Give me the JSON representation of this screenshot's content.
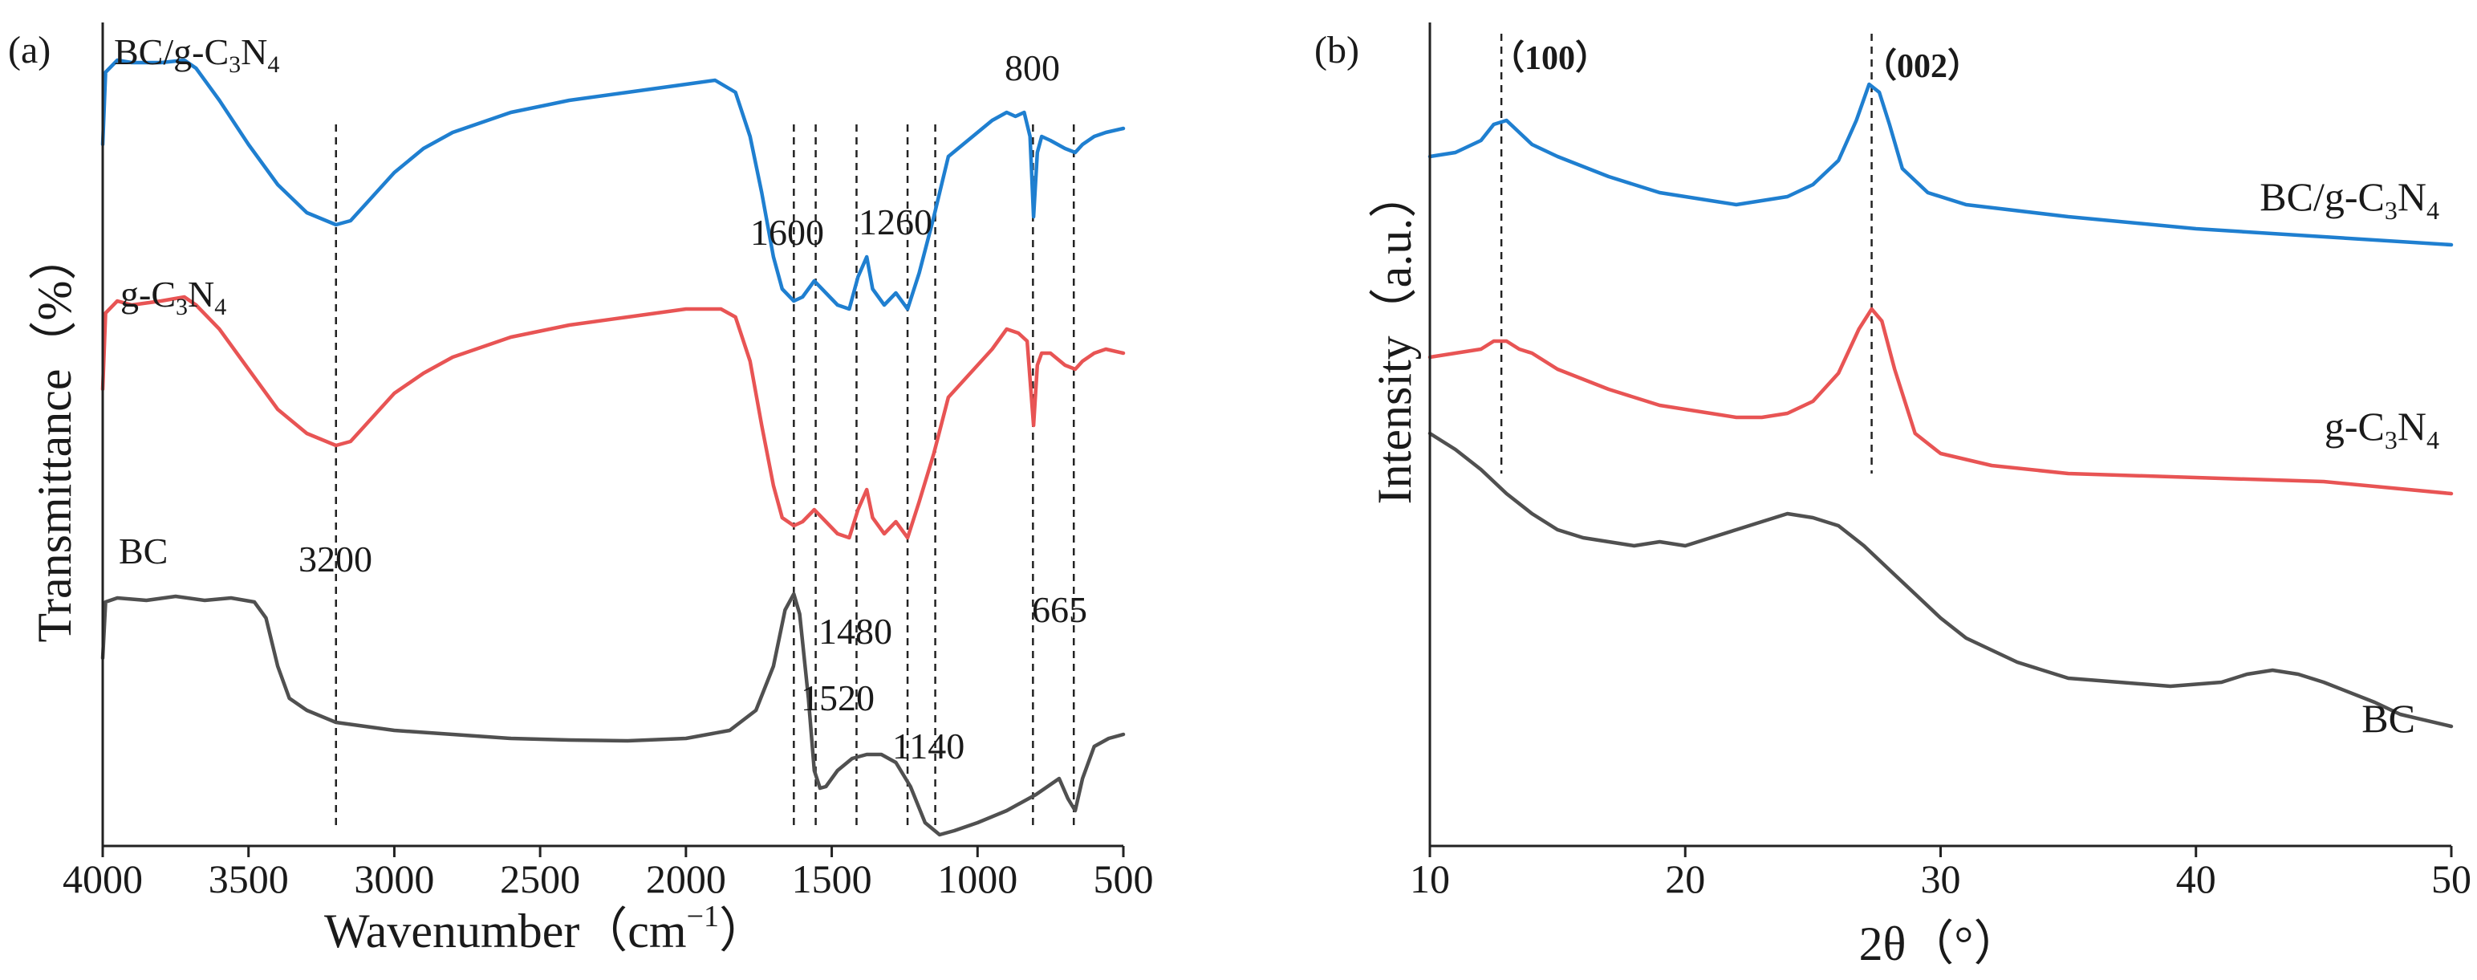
{
  "colors": {
    "bc": "#505050",
    "gc3n4": "#e85454",
    "bc_gc3n4": "#1f7fd0",
    "axis": "#222222"
  },
  "chart_data": [
    {
      "panel": "(a)",
      "type": "line",
      "title": "",
      "xlabel": "Wavenumber（cm",
      "xlabel_sup": "−1",
      "xlabel_close": "）",
      "ylabel": "Transmittance（%）",
      "xlim": [
        4000,
        500
      ],
      "ylim": [
        0,
        1
      ],
      "x_ticks": [
        4000,
        3500,
        3000,
        2500,
        2000,
        1500,
        1000,
        500
      ],
      "x_tick_labels": [
        "4000",
        "3500",
        "3000",
        "2500",
        "2000",
        "1500",
        "1000",
        "500"
      ],
      "grid": false,
      "series": [
        {
          "name": "BC/g-C3N4",
          "label_main": "BC/g-C",
          "label_sub1": "3",
          "label_mid": "N",
          "label_sub2": "4",
          "color_key": "bc_gc3n4",
          "points": [
            [
              4000,
              0.86
            ],
            [
              3990,
              0.95
            ],
            [
              3950,
              0.965
            ],
            [
              3900,
              0.962
            ],
            [
              3800,
              0.962
            ],
            [
              3720,
              0.965
            ],
            [
              3680,
              0.955
            ],
            [
              3600,
              0.915
            ],
            [
              3500,
              0.86
            ],
            [
              3400,
              0.81
            ],
            [
              3300,
              0.775
            ],
            [
              3200,
              0.76
            ],
            [
              3150,
              0.765
            ],
            [
              3100,
              0.785
            ],
            [
              3000,
              0.825
            ],
            [
              2900,
              0.855
            ],
            [
              2800,
              0.875
            ],
            [
              2600,
              0.9
            ],
            [
              2400,
              0.915
            ],
            [
              2200,
              0.925
            ],
            [
              2000,
              0.935
            ],
            [
              1900,
              0.94
            ],
            [
              1830,
              0.925
            ],
            [
              1780,
              0.87
            ],
            [
              1740,
              0.8
            ],
            [
              1700,
              0.72
            ],
            [
              1670,
              0.68
            ],
            [
              1630,
              0.665
            ],
            [
              1600,
              0.67
            ],
            [
              1560,
              0.69
            ],
            [
              1520,
              0.675
            ],
            [
              1480,
              0.66
            ],
            [
              1440,
              0.655
            ],
            [
              1410,
              0.695
            ],
            [
              1380,
              0.72
            ],
            [
              1360,
              0.68
            ],
            [
              1320,
              0.66
            ],
            [
              1280,
              0.675
            ],
            [
              1240,
              0.655
            ],
            [
              1200,
              0.7
            ],
            [
              1150,
              0.77
            ],
            [
              1100,
              0.845
            ],
            [
              1050,
              0.86
            ],
            [
              1000,
              0.875
            ],
            [
              950,
              0.89
            ],
            [
              900,
              0.9
            ],
            [
              870,
              0.895
            ],
            [
              840,
              0.9
            ],
            [
              820,
              0.87
            ],
            [
              808,
              0.77
            ],
            [
              795,
              0.85
            ],
            [
              780,
              0.87
            ],
            [
              750,
              0.865
            ],
            [
              700,
              0.855
            ],
            [
              665,
              0.85
            ],
            [
              640,
              0.86
            ],
            [
              600,
              0.87
            ],
            [
              560,
              0.875
            ],
            [
              500,
              0.88
            ]
          ]
        },
        {
          "name": "g-C3N4",
          "label_main": "g-C",
          "label_sub1": "3",
          "label_mid": "N",
          "label_sub2": "4",
          "color_key": "gc3n4",
          "points": [
            [
              4000,
              0.555
            ],
            [
              3990,
              0.65
            ],
            [
              3950,
              0.665
            ],
            [
              3900,
              0.66
            ],
            [
              3800,
              0.665
            ],
            [
              3720,
              0.67
            ],
            [
              3680,
              0.66
            ],
            [
              3600,
              0.63
            ],
            [
              3500,
              0.58
            ],
            [
              3400,
              0.53
            ],
            [
              3300,
              0.5
            ],
            [
              3200,
              0.485
            ],
            [
              3150,
              0.49
            ],
            [
              3100,
              0.51
            ],
            [
              3000,
              0.55
            ],
            [
              2900,
              0.575
            ],
            [
              2800,
              0.595
            ],
            [
              2600,
              0.62
            ],
            [
              2400,
              0.635
            ],
            [
              2200,
              0.645
            ],
            [
              2000,
              0.655
            ],
            [
              1880,
              0.655
            ],
            [
              1830,
              0.645
            ],
            [
              1780,
              0.59
            ],
            [
              1740,
              0.51
            ],
            [
              1700,
              0.435
            ],
            [
              1670,
              0.395
            ],
            [
              1630,
              0.385
            ],
            [
              1600,
              0.39
            ],
            [
              1560,
              0.405
            ],
            [
              1520,
              0.39
            ],
            [
              1480,
              0.375
            ],
            [
              1440,
              0.37
            ],
            [
              1410,
              0.405
            ],
            [
              1380,
              0.43
            ],
            [
              1360,
              0.395
            ],
            [
              1320,
              0.375
            ],
            [
              1280,
              0.39
            ],
            [
              1240,
              0.37
            ],
            [
              1200,
              0.415
            ],
            [
              1150,
              0.475
            ],
            [
              1100,
              0.545
            ],
            [
              1050,
              0.565
            ],
            [
              1000,
              0.585
            ],
            [
              950,
              0.605
            ],
            [
              900,
              0.63
            ],
            [
              860,
              0.625
            ],
            [
              830,
              0.615
            ],
            [
              808,
              0.51
            ],
            [
              795,
              0.585
            ],
            [
              780,
              0.6
            ],
            [
              750,
              0.6
            ],
            [
              700,
              0.585
            ],
            [
              665,
              0.58
            ],
            [
              640,
              0.59
            ],
            [
              600,
              0.6
            ],
            [
              560,
              0.605
            ],
            [
              500,
              0.6
            ]
          ]
        },
        {
          "name": "BC",
          "label_main": "BC",
          "color_key": "bc",
          "points": [
            [
              4000,
              0.22
            ],
            [
              3990,
              0.29
            ],
            [
              3950,
              0.295
            ],
            [
              3850,
              0.292
            ],
            [
              3750,
              0.297
            ],
            [
              3650,
              0.292
            ],
            [
              3560,
              0.295
            ],
            [
              3480,
              0.29
            ],
            [
              3440,
              0.27
            ],
            [
              3400,
              0.21
            ],
            [
              3360,
              0.17
            ],
            [
              3300,
              0.155
            ],
            [
              3200,
              0.14
            ],
            [
              3000,
              0.13
            ],
            [
              2800,
              0.125
            ],
            [
              2600,
              0.12
            ],
            [
              2400,
              0.118
            ],
            [
              2200,
              0.117
            ],
            [
              2000,
              0.12
            ],
            [
              1850,
              0.13
            ],
            [
              1760,
              0.155
            ],
            [
              1700,
              0.21
            ],
            [
              1660,
              0.28
            ],
            [
              1630,
              0.3
            ],
            [
              1610,
              0.275
            ],
            [
              1580,
              0.17
            ],
            [
              1560,
              0.08
            ],
            [
              1540,
              0.058
            ],
            [
              1520,
              0.06
            ],
            [
              1480,
              0.08
            ],
            [
              1430,
              0.095
            ],
            [
              1380,
              0.1
            ],
            [
              1330,
              0.1
            ],
            [
              1280,
              0.09
            ],
            [
              1230,
              0.06
            ],
            [
              1180,
              0.015
            ],
            [
              1130,
              0.0
            ],
            [
              1080,
              0.005
            ],
            [
              1000,
              0.015
            ],
            [
              900,
              0.03
            ],
            [
              800,
              0.05
            ],
            [
              720,
              0.07
            ],
            [
              690,
              0.045
            ],
            [
              665,
              0.03
            ],
            [
              640,
              0.07
            ],
            [
              600,
              0.11
            ],
            [
              550,
              0.12
            ],
            [
              500,
              0.125
            ]
          ]
        }
      ],
      "peak_labels": [
        "3200",
        "1600",
        "1480",
        "1520",
        "1260",
        "1140",
        "800",
        "665"
      ],
      "reference_lines": [
        3200,
        1630,
        1415,
        1240,
        1555,
        1145,
        810,
        670
      ]
    },
    {
      "panel": "(b)",
      "type": "line",
      "title": "",
      "xlabel": "2θ（°）",
      "ylabel": "Intensity（a.u.）",
      "xlim": [
        10,
        50
      ],
      "ylim": [
        0,
        1
      ],
      "x_ticks": [
        10,
        20,
        30,
        40,
        50
      ],
      "x_tick_labels": [
        "10",
        "20",
        "30",
        "40",
        "50"
      ],
      "grid": false,
      "series": [
        {
          "name": "BC/g-C3N4",
          "label_main": "BC/g-C",
          "label_sub1": "3",
          "label_mid": "N",
          "label_sub2": "4",
          "color_key": "bc_gc3n4",
          "points": [
            [
              10,
              0.845
            ],
            [
              11,
              0.85
            ],
            [
              12,
              0.865
            ],
            [
              12.5,
              0.885
            ],
            [
              13,
              0.89
            ],
            [
              13.5,
              0.875
            ],
            [
              14,
              0.86
            ],
            [
              15,
              0.845
            ],
            [
              17,
              0.82
            ],
            [
              19,
              0.8
            ],
            [
              21,
              0.79
            ],
            [
              22,
              0.785
            ],
            [
              23,
              0.79
            ],
            [
              24,
              0.795
            ],
            [
              25,
              0.81
            ],
            [
              26,
              0.84
            ],
            [
              26.7,
              0.89
            ],
            [
              27.2,
              0.935
            ],
            [
              27.6,
              0.925
            ],
            [
              28,
              0.885
            ],
            [
              28.5,
              0.83
            ],
            [
              29.5,
              0.8
            ],
            [
              31,
              0.785
            ],
            [
              35,
              0.77
            ],
            [
              40,
              0.755
            ],
            [
              45,
              0.745
            ],
            [
              50,
              0.735
            ]
          ]
        },
        {
          "name": "g-C3N4",
          "label_main": "g-C",
          "label_sub1": "3",
          "label_mid": "N",
          "label_sub2": "4",
          "color_key": "gc3n4",
          "points": [
            [
              10,
              0.595
            ],
            [
              11,
              0.6
            ],
            [
              12,
              0.605
            ],
            [
              12.5,
              0.615
            ],
            [
              13,
              0.615
            ],
            [
              13.5,
              0.605
            ],
            [
              14,
              0.6
            ],
            [
              15,
              0.58
            ],
            [
              17,
              0.555
            ],
            [
              19,
              0.535
            ],
            [
              21,
              0.525
            ],
            [
              22,
              0.52
            ],
            [
              23,
              0.52
            ],
            [
              24,
              0.525
            ],
            [
              25,
              0.54
            ],
            [
              26,
              0.575
            ],
            [
              26.8,
              0.63
            ],
            [
              27.3,
              0.655
            ],
            [
              27.7,
              0.64
            ],
            [
              28.2,
              0.58
            ],
            [
              29,
              0.5
            ],
            [
              30,
              0.475
            ],
            [
              32,
              0.46
            ],
            [
              35,
              0.45
            ],
            [
              40,
              0.445
            ],
            [
              45,
              0.44
            ],
            [
              50,
              0.425
            ]
          ]
        },
        {
          "name": "BC",
          "label_main": "BC",
          "color_key": "bc",
          "points": [
            [
              10,
              0.5
            ],
            [
              11,
              0.48
            ],
            [
              12,
              0.455
            ],
            [
              13,
              0.425
            ],
            [
              14,
              0.4
            ],
            [
              15,
              0.38
            ],
            [
              16,
              0.37
            ],
            [
              18,
              0.36
            ],
            [
              19,
              0.365
            ],
            [
              20,
              0.36
            ],
            [
              21,
              0.37
            ],
            [
              22,
              0.38
            ],
            [
              23,
              0.39
            ],
            [
              24,
              0.4
            ],
            [
              25,
              0.395
            ],
            [
              26,
              0.385
            ],
            [
              27,
              0.36
            ],
            [
              28,
              0.33
            ],
            [
              29,
              0.3
            ],
            [
              30,
              0.27
            ],
            [
              31,
              0.245
            ],
            [
              33,
              0.215
            ],
            [
              35,
              0.195
            ],
            [
              37,
              0.19
            ],
            [
              39,
              0.185
            ],
            [
              41,
              0.19
            ],
            [
              42,
              0.2
            ],
            [
              43,
              0.205
            ],
            [
              44,
              0.2
            ],
            [
              45,
              0.19
            ],
            [
              47,
              0.165
            ],
            [
              48,
              0.15
            ],
            [
              50,
              0.135
            ]
          ]
        }
      ],
      "peak_labels": [
        "（100）",
        "（002）"
      ],
      "reference_lines": [
        12.8,
        27.3
      ]
    }
  ]
}
